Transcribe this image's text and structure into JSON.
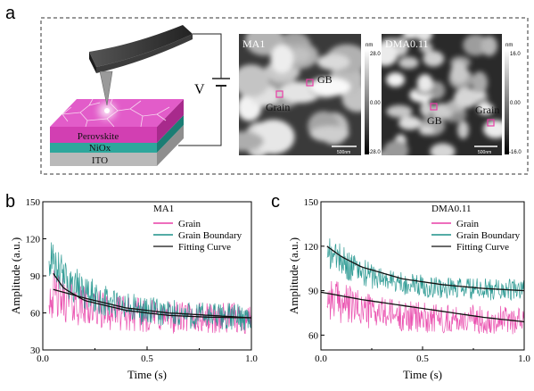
{
  "panel_a": {
    "label": "a",
    "voltage_label": "V",
    "layers": [
      "Perovskite",
      "NiOx",
      "ITO"
    ],
    "afm_left": {
      "title": "MA1",
      "gb_label": "GB",
      "grain_label": "Grain",
      "colorbar_unit": "nm",
      "colorbar_ticks": [
        "28.0",
        "0.00",
        "-28.0"
      ],
      "scalebar_label": "500nm"
    },
    "afm_right": {
      "title": "DMA0.11",
      "gb_label": "GB",
      "grain_label": "Grain",
      "colorbar_unit": "nm",
      "colorbar_ticks": [
        "16.0",
        "0.00",
        "-16.0"
      ],
      "scalebar_label": "500nm"
    }
  },
  "chart_data": [
    {
      "panel": "b",
      "type": "line",
      "title": "MA1",
      "xlabel": "Time (s)",
      "ylabel": "Amplitude (a.u.)",
      "xlim": [
        0.0,
        1.0
      ],
      "ylim": [
        30,
        150
      ],
      "xticks": [
        "0.0",
        "0.5",
        "1.0"
      ],
      "yticks": [
        "30",
        "60",
        "90",
        "120",
        "150"
      ],
      "legend_position": "top-right",
      "series": [
        {
          "name": "Grain",
          "color": "#e83fa7",
          "start": 80,
          "mid": 62,
          "end": 55,
          "noise": 16
        },
        {
          "name": "Grain Boundary",
          "color": "#1b9189",
          "start": 108,
          "mid": 62,
          "end": 56,
          "noise": 14
        },
        {
          "name": "Fitting Curve",
          "color": "#111111",
          "fits": [
            [
              0.05,
              92
            ],
            [
              0.1,
              80
            ],
            [
              0.2,
              70
            ],
            [
              0.4,
              62
            ],
            [
              0.6,
              58
            ],
            [
              0.8,
              56.5
            ],
            [
              1.0,
              56
            ]
          ],
          "fits2": [
            [
              0.05,
              79
            ],
            [
              0.2,
              72
            ],
            [
              0.4,
              64
            ],
            [
              0.6,
              60
            ],
            [
              0.8,
              58
            ],
            [
              1.0,
              56
            ]
          ]
        }
      ]
    },
    {
      "panel": "c",
      "type": "line",
      "title": "DMA0.11",
      "xlabel": "Time (s)",
      "ylabel": "Amplitude (a.u.)",
      "xlim": [
        0.0,
        1.0
      ],
      "ylim": [
        50,
        150
      ],
      "xticks": [
        "0.0",
        "0.5",
        "1.0"
      ],
      "yticks": [
        "60",
        "90",
        "120",
        "150"
      ],
      "legend_position": "top-right",
      "series": [
        {
          "name": "Grain",
          "color": "#e83fa7",
          "start": 89,
          "mid": 78,
          "end": 70,
          "noise": 12
        },
        {
          "name": "Grain Boundary",
          "color": "#1b9189",
          "start": 122,
          "mid": 96,
          "end": 90,
          "noise": 9
        },
        {
          "name": "Fitting Curve",
          "color": "#111111",
          "fits": [
            [
              0.03,
              120
            ],
            [
              0.1,
              113
            ],
            [
              0.2,
              106
            ],
            [
              0.4,
              98
            ],
            [
              0.6,
              94
            ],
            [
              0.8,
              91.5
            ],
            [
              1.0,
              90
            ]
          ],
          "fits2": [
            [
              0.0,
              89
            ],
            [
              0.2,
              84
            ],
            [
              0.4,
              80
            ],
            [
              0.6,
              76
            ],
            [
              0.8,
              72
            ],
            [
              1.0,
              69
            ]
          ]
        }
      ]
    }
  ]
}
